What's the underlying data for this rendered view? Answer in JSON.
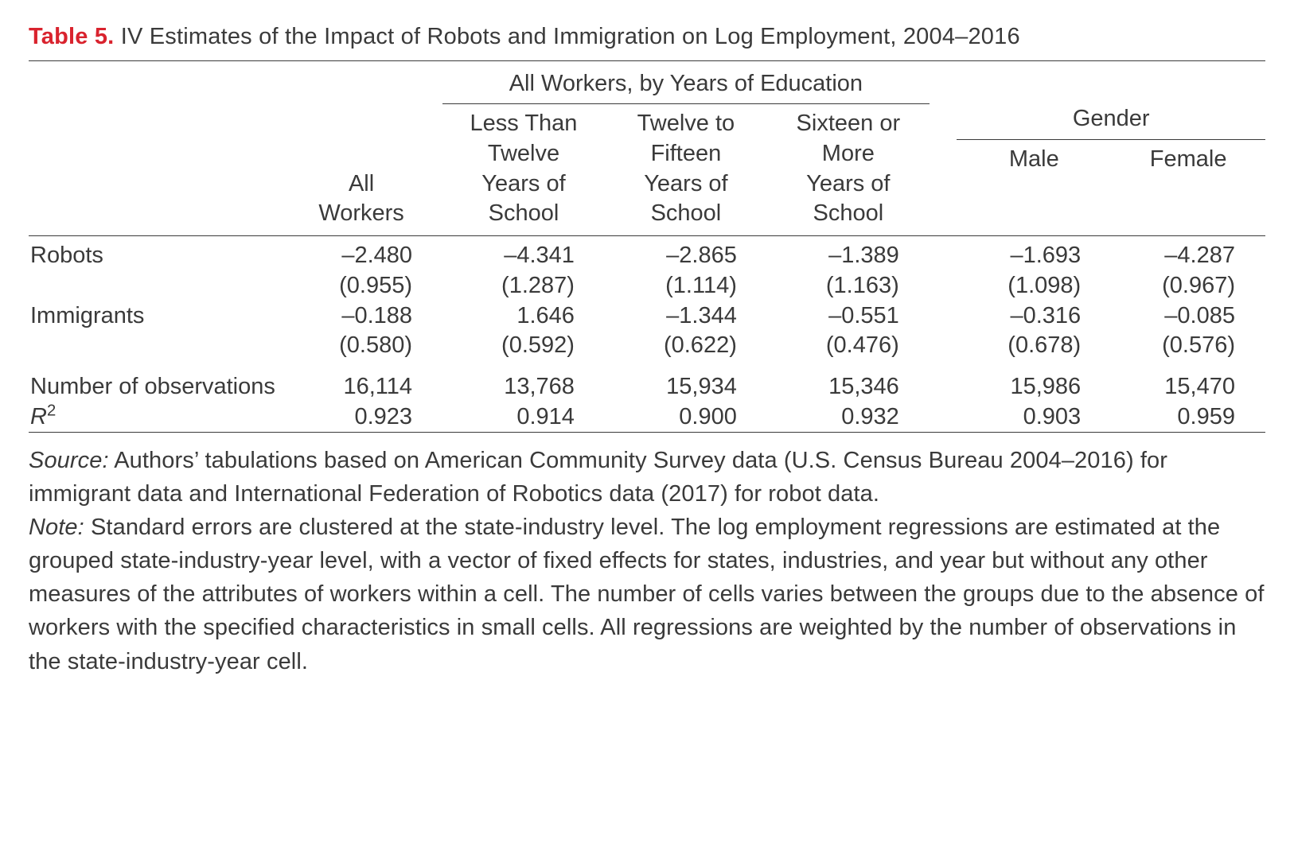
{
  "caption": {
    "label": "Table 5.",
    "title": "IV Estimates of the Impact of Robots and Immigration on Log Employment, 2004–2016"
  },
  "spanners": {
    "education": "All Workers, by Years of Education",
    "gender": "Gender"
  },
  "columns": {
    "all": "All\nWorkers",
    "lt12": "Less Than\nTwelve\nYears of\nSchool",
    "y1215": "Twelve to\nFifteen\nYears of\nSchool",
    "ge16": "Sixteen or\nMore\nYears of\nSchool",
    "male": "Male",
    "female": "Female"
  },
  "rows": {
    "robots": {
      "label": "Robots",
      "est": [
        "–2.480",
        "–4.341",
        "–2.865",
        "–1.389",
        "–1.693",
        "–4.287"
      ],
      "se": [
        "(0.955)",
        "(1.287)",
        "(1.114)",
        "(1.163)",
        "(1.098)",
        "(0.967)"
      ]
    },
    "immigrants": {
      "label": "Immigrants",
      "est": [
        "–0.188",
        "1.646",
        "–1.344",
        "–0.551",
        "–0.316",
        "–0.085"
      ],
      "se": [
        "(0.580)",
        "(0.592)",
        "(0.622)",
        "(0.476)",
        "(0.678)",
        "(0.576)"
      ]
    },
    "nobs": {
      "label": "Number of observations",
      "vals": [
        "16,114",
        "13,768",
        "15,934",
        "15,346",
        "15,986",
        "15,470"
      ]
    },
    "r2": {
      "label_html": "R",
      "vals": [
        "0.923",
        "0.914",
        "0.900",
        "0.932",
        "0.903",
        "0.959"
      ]
    }
  },
  "notes": {
    "source_label": "Source:",
    "source_text": " Authors’ tabulations based on American Community Survey data (U.S. Census Bureau 2004–2016) for immigrant data and International Federation of Robotics data (2017) for robot data.",
    "note_label": "Note:",
    "note_text": " Standard errors are clustered at the state-industry level. The log employment regressions are estimated at the grouped state-industry-year level, with a vector of fixed effects for states, industries, and year but without any other measures of the attributes of workers within a cell. The number of cells varies between the groups due to the absence of workers with the specified characteristics in small cells. All regressions are weighted by the number of observations in the state-industry-year cell."
  },
  "style": {
    "accent_color": "#d9232e",
    "text_color": "#3a3a3a",
    "rule_color": "#3a3a3a",
    "font_size_pt": 22
  }
}
